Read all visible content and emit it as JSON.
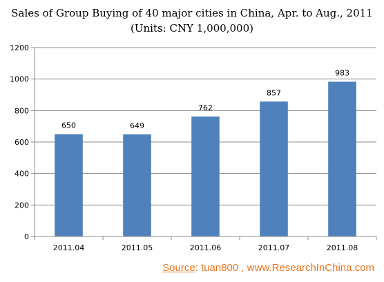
{
  "chart_data": {
    "type": "bar",
    "title": "Sales of Group Buying of 40 major cities in China, Apr. to Aug., 2011",
    "subtitle": "(Units: CNY 1,000,000)",
    "categories": [
      "2011.04",
      "2011.05",
      "2011.06",
      "2011.07",
      "2011.08"
    ],
    "values": [
      650,
      649,
      762,
      857,
      983
    ],
    "data_labels": [
      "650",
      "649",
      "762",
      "857",
      "983"
    ],
    "ylim": [
      0,
      1200
    ],
    "yticks": [
      "0",
      "200",
      "400",
      "600",
      "800",
      "1000",
      "1200"
    ],
    "xlabel": "",
    "ylabel": "",
    "grid": true,
    "legend": "none",
    "bar_color": "#4f81bd"
  },
  "source": {
    "label": "Source",
    "text": ": tuan800 , www.ResearchInChina.com"
  }
}
